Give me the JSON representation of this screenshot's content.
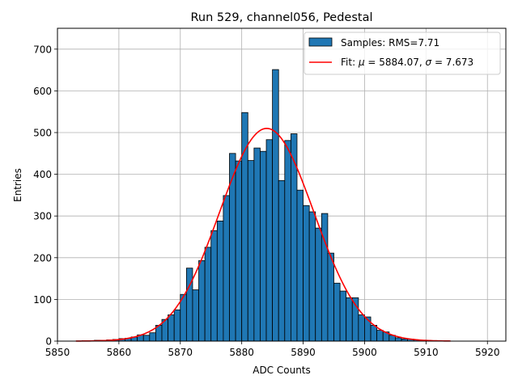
{
  "chart_data": {
    "type": "bar",
    "title": "Run 529, channel056, Pedestal",
    "xlabel": "ADC Counts",
    "ylabel": "Entries",
    "xlim": [
      5850,
      5923
    ],
    "ylim": [
      0,
      750
    ],
    "xticks": [
      5850,
      5860,
      5870,
      5880,
      5890,
      5900,
      5910,
      5920
    ],
    "yticks": [
      0,
      100,
      200,
      300,
      400,
      500,
      600,
      700
    ],
    "grid": true,
    "legend_position": "top-right",
    "bar_color": "#1f77b4",
    "fit_color": "#ff0000",
    "bin_edges_start": 5853,
    "bin_width": 1,
    "series": [
      {
        "name": "Samples: RMS=7.71",
        "kind": "histogram",
        "x": [
          5853,
          5854,
          5855,
          5856,
          5857,
          5858,
          5859,
          5860,
          5861,
          5862,
          5863,
          5864,
          5865,
          5866,
          5867,
          5868,
          5869,
          5870,
          5871,
          5872,
          5873,
          5874,
          5875,
          5876,
          5877,
          5878,
          5879,
          5880,
          5881,
          5882,
          5883,
          5884,
          5885,
          5886,
          5887,
          5888,
          5889,
          5890,
          5891,
          5892,
          5893,
          5894,
          5895,
          5896,
          5897,
          5898,
          5899,
          5900,
          5901,
          5902,
          5903,
          5904,
          5905,
          5906,
          5907,
          5908,
          5909,
          5910,
          5911,
          5912,
          5913
        ],
        "values": [
          0,
          1,
          1,
          2,
          2,
          3,
          4,
          6,
          7,
          10,
          15,
          14,
          20,
          38,
          52,
          63,
          75,
          112,
          175,
          123,
          193,
          225,
          265,
          288,
          349,
          450,
          432,
          548,
          433,
          463,
          455,
          483,
          651,
          385,
          481,
          497,
          362,
          325,
          310,
          271,
          306,
          211,
          139,
          120,
          104,
          104,
          63,
          58,
          38,
          26,
          22,
          14,
          8,
          5,
          5,
          3,
          2,
          1,
          1,
          1,
          0
        ]
      }
    ],
    "fit": {
      "label_prefix": "Fit: ",
      "label_mu": "μ",
      "label_mid": " = 5884.07, ",
      "label_sigma": "σ",
      "label_end": " = 7.673",
      "mu": 5884.07,
      "sigma": 7.673,
      "amplitude": 510,
      "x_range": [
        5853,
        5914
      ]
    }
  }
}
